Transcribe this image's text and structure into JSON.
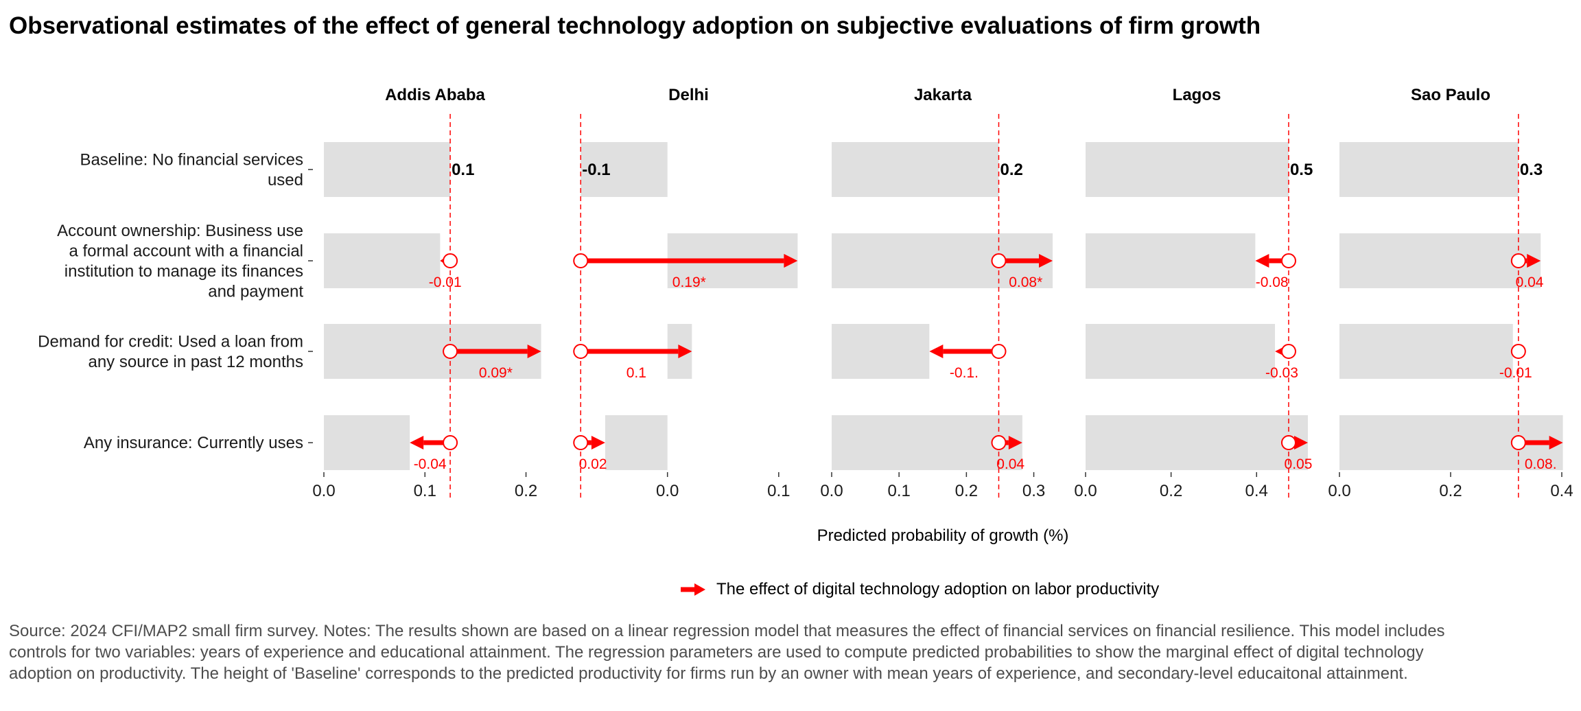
{
  "title": "Observational estimates of the effect of general technology adoption on subjective evaluations of firm growth",
  "colors": {
    "effect": "#ff0000",
    "bar": "#e0e0e0",
    "baseline_label": "#000000",
    "note": "#4d4d4d"
  },
  "legend": {
    "label": "The effect of digital technology adoption on labor productivity",
    "icon": "arrow-icon"
  },
  "note": "Source: 2024 CFI/MAP2 small firm survey. Notes: The results shown are based on a linear regression model that measures the effect of financial services on financial resilience. This model includes controls for two variables: years of experience and educational attainment. The regression parameters are used to compute predicted probabilities to show the marginal effect of digital technology adoption on productivity. The height of 'Baseline' corresponds to the predicted productivity for firms run by an owner with mean years of experience, and secondary-level educaitonal attainment.",
  "chart_data": {
    "type": "bar",
    "xlabel": "Predicted probability of growth (%)",
    "ylabel": "",
    "categories": [
      "Baseline: No financial services used",
      "Account ownership: Business use a formal account with a financial institution to manage its finances and payment",
      "Demand for credit: Used a loan from any source in past 12 months",
      "Any insurance: Currently uses"
    ],
    "category_lines": [
      [
        "Baseline: No financial services",
        "used"
      ],
      [
        "Account ownership: Business use",
        "a formal account with a financial",
        "institution to manage its finances",
        "and payment"
      ],
      [
        "Demand for credit: Used a loan from",
        "any source in past 12 months"
      ],
      [
        "Any insurance: Currently uses"
      ]
    ],
    "panels": [
      {
        "city": "Addis Ababa",
        "xlim": [
          0,
          0.22
        ],
        "ticks": [
          0,
          0.1,
          0.2
        ],
        "tick_labels": [
          "0.0",
          "0.1",
          "0.2"
        ],
        "baseline": 0.125,
        "baseline_label": "0.1",
        "effects": [
          -0.01,
          0.09,
          -0.04
        ],
        "effect_labels": [
          "-0.01",
          "0.09*",
          "-0.04"
        ]
      },
      {
        "city": "Delhi",
        "xlim": [
          -0.08,
          0.118
        ],
        "ticks": [
          0,
          0.1
        ],
        "tick_labels": [
          "0.0",
          "0.1"
        ],
        "baseline": -0.078,
        "baseline_label": "-0.1",
        "effects": [
          0.195,
          0.1,
          0.022
        ],
        "effect_labels": [
          "0.19*",
          "0.1",
          "0.02"
        ]
      },
      {
        "city": "Jakarta",
        "xlim": [
          0,
          0.33
        ],
        "ticks": [
          0,
          0.1,
          0.2,
          0.3
        ],
        "tick_labels": [
          "0.0",
          "0.1",
          "0.2",
          "0.3"
        ],
        "baseline": 0.248,
        "baseline_label": "0.2",
        "effects": [
          0.08,
          -0.103,
          0.035
        ],
        "effect_labels": [
          "0.08*",
          "-0.1.",
          "0.04"
        ]
      },
      {
        "city": "Lagos",
        "xlim": [
          0,
          0.52
        ],
        "ticks": [
          0,
          0.2,
          0.4
        ],
        "tick_labels": [
          "0.0",
          "0.2",
          "0.4"
        ],
        "baseline": 0.475,
        "baseline_label": "0.5",
        "effects": [
          -0.078,
          -0.032,
          0.045
        ],
        "effect_labels": [
          "-0.08",
          "-0.03",
          "0.05"
        ]
      },
      {
        "city": "Sao Paulo",
        "xlim": [
          0,
          0.4
        ],
        "ticks": [
          0,
          0.2,
          0.4
        ],
        "tick_labels": [
          "0.0",
          "0.2",
          "0.4"
        ],
        "baseline": 0.322,
        "baseline_label": "0.3",
        "effects": [
          0.04,
          -0.01,
          0.08
        ],
        "effect_labels": [
          "0.04",
          "-0.01",
          "0.08."
        ]
      }
    ]
  }
}
